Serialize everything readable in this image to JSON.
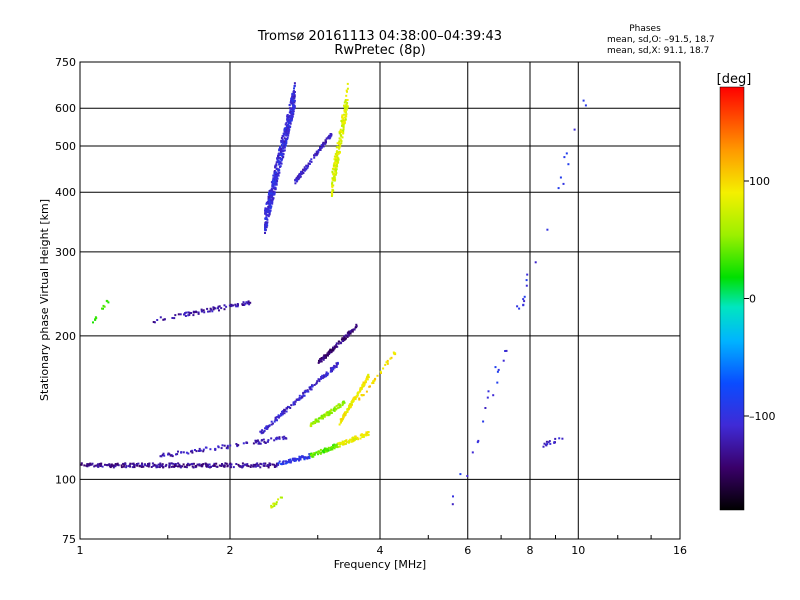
{
  "chart_data": {
    "type": "scatter",
    "title": "Tromsø 20161113 04:38:00–04:39:43",
    "subtitle": "RwPretec (8p)",
    "xlabel": "Frequency [MHz]",
    "ylabel": "Stationary phase Virtual Height [km]",
    "x_scale": "log",
    "y_scale": "log",
    "xlim": [
      1,
      16
    ],
    "ylim": [
      75,
      750
    ],
    "x_ticks": [
      "1",
      "2",
      "4",
      "6",
      "8",
      "10",
      "16"
    ],
    "y_ticks": [
      "75",
      "100",
      "200",
      "300",
      "400",
      "500",
      "600",
      "750"
    ],
    "grid": true,
    "phases_box": {
      "title": "Phases",
      "line_o": "mean, sd,O: –91.5, 18.7",
      "line_x": "mean, sd,X:  91.1, 18.7"
    },
    "colorbar": {
      "label": "[deg]",
      "range": [
        -180,
        180
      ],
      "ticks": [
        "100",
        "0",
        "–100"
      ],
      "tick_values": [
        100,
        0,
        -100
      ]
    },
    "traces": [
      {
        "freq_range": [
          1.0,
          2.5
        ],
        "height": [
          107,
          107
        ],
        "phase": -130,
        "density": 260
      },
      {
        "freq_range": [
          2.5,
          2.9
        ],
        "height": [
          108,
          112
        ],
        "phase": -95,
        "density": 60
      },
      {
        "freq_range": [
          2.9,
          3.3
        ],
        "height": [
          112,
          118
        ],
        "phase": 40,
        "density": 70
      },
      {
        "freq_range": [
          3.3,
          3.8
        ],
        "height": [
          118,
          125
        ],
        "phase": 85,
        "density": 70
      },
      {
        "freq_range": [
          1.45,
          2.6
        ],
        "height": [
          112,
          122
        ],
        "phase": -120,
        "density": 90
      },
      {
        "freq_range": [
          2.3,
          3.3
        ],
        "height": [
          125,
          175
        ],
        "phase": -110,
        "density": 140
      },
      {
        "freq_range": [
          3.0,
          3.6
        ],
        "height": [
          175,
          210
        ],
        "phase": -140,
        "density": 110
      },
      {
        "freq_range": [
          2.9,
          3.4
        ],
        "height": [
          130,
          145
        ],
        "phase": 55,
        "density": 90
      },
      {
        "freq_range": [
          3.3,
          3.8
        ],
        "height": [
          130,
          165
        ],
        "phase": 90,
        "density": 120
      },
      {
        "freq_range": [
          1.4,
          2.2
        ],
        "height": [
          215,
          235
        ],
        "phase": -125,
        "density": 80
      },
      {
        "freq_range": [
          2.35,
          2.7
        ],
        "height": [
          345,
          640
        ],
        "phase": -105,
        "density": 520
      },
      {
        "freq_range": [
          2.7,
          3.2
        ],
        "height": [
          420,
          530
        ],
        "phase": -115,
        "density": 120
      },
      {
        "freq_range": [
          3.2,
          3.45
        ],
        "height": [
          410,
          640
        ],
        "phase": 80,
        "density": 200
      },
      {
        "freq_range": [
          2.4,
          2.55
        ],
        "height": [
          87,
          92
        ],
        "phase": 70,
        "density": 14
      },
      {
        "freq_range": [
          1.05,
          1.15
        ],
        "height": [
          210,
          240
        ],
        "phase": 30,
        "density": 12
      },
      {
        "freq_range": [
          3.6,
          4.3
        ],
        "height": [
          145,
          185
        ],
        "phase": 100,
        "density": 30
      },
      {
        "freq_range": [
          5.5,
          10.5
        ],
        "height": [
          82,
          640
        ],
        "phase": -100,
        "density": 40
      },
      {
        "freq_range": [
          8.5,
          9.3
        ],
        "height": [
          118,
          122
        ],
        "phase": -115,
        "density": 16
      }
    ]
  }
}
